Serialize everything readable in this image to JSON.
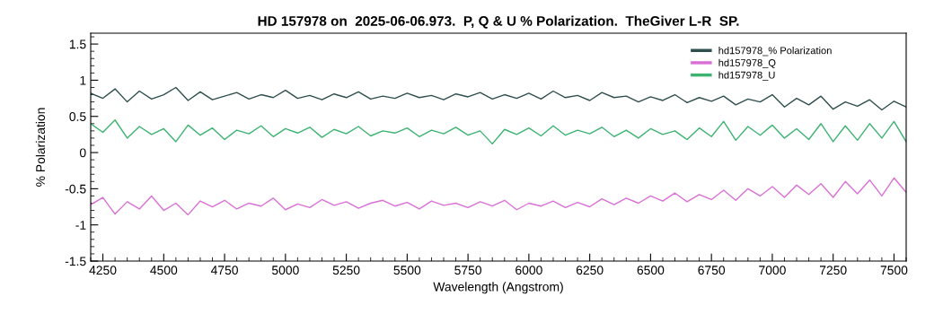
{
  "chart_data": {
    "type": "line",
    "title": "HD 157978 on  2025-06-06.973.  P, Q & U % Polarization.  TheGiver L-R  SP.",
    "xlabel": "Wavelength (Angstrom)",
    "ylabel": "% Polarization",
    "x": [
      4200,
      4250,
      4300,
      4350,
      4400,
      4450,
      4500,
      4550,
      4600,
      4650,
      4700,
      4750,
      4800,
      4850,
      4900,
      4950,
      5000,
      5050,
      5100,
      5150,
      5200,
      5250,
      5300,
      5350,
      5400,
      5450,
      5500,
      5550,
      5600,
      5650,
      5700,
      5750,
      5800,
      5850,
      5900,
      5950,
      6000,
      6050,
      6100,
      6150,
      6200,
      6250,
      6300,
      6350,
      6400,
      6450,
      6500,
      6550,
      6600,
      6650,
      6700,
      6750,
      6800,
      6850,
      6900,
      6950,
      7000,
      7050,
      7100,
      7150,
      7200,
      7250,
      7300,
      7350,
      7400,
      7450,
      7500,
      7550
    ],
    "series": [
      {
        "name": "hd157978_% Polarization",
        "color": "#2f4f4f",
        "values": [
          0.82,
          0.75,
          0.88,
          0.7,
          0.85,
          0.74,
          0.8,
          0.9,
          0.72,
          0.84,
          0.73,
          0.78,
          0.83,
          0.74,
          0.8,
          0.76,
          0.86,
          0.75,
          0.79,
          0.73,
          0.81,
          0.76,
          0.84,
          0.74,
          0.78,
          0.75,
          0.82,
          0.76,
          0.79,
          0.73,
          0.81,
          0.77,
          0.83,
          0.74,
          0.8,
          0.75,
          0.82,
          0.74,
          0.85,
          0.76,
          0.79,
          0.72,
          0.83,
          0.76,
          0.78,
          0.7,
          0.77,
          0.72,
          0.8,
          0.69,
          0.76,
          0.71,
          0.78,
          0.66,
          0.74,
          0.7,
          0.8,
          0.63,
          0.75,
          0.66,
          0.78,
          0.6,
          0.7,
          0.64,
          0.73,
          0.59,
          0.71,
          0.63
        ]
      },
      {
        "name": "hd157978_Q",
        "color": "#da70d6",
        "values": [
          -0.72,
          -0.62,
          -0.85,
          -0.68,
          -0.78,
          -0.6,
          -0.8,
          -0.7,
          -0.86,
          -0.67,
          -0.75,
          -0.66,
          -0.78,
          -0.7,
          -0.74,
          -0.63,
          -0.79,
          -0.71,
          -0.76,
          -0.65,
          -0.73,
          -0.68,
          -0.77,
          -0.7,
          -0.66,
          -0.74,
          -0.69,
          -0.78,
          -0.67,
          -0.73,
          -0.7,
          -0.76,
          -0.68,
          -0.74,
          -0.66,
          -0.79,
          -0.7,
          -0.74,
          -0.67,
          -0.76,
          -0.69,
          -0.75,
          -0.64,
          -0.72,
          -0.63,
          -0.7,
          -0.6,
          -0.67,
          -0.56,
          -0.68,
          -0.58,
          -0.65,
          -0.52,
          -0.66,
          -0.5,
          -0.6,
          -0.47,
          -0.62,
          -0.45,
          -0.58,
          -0.43,
          -0.62,
          -0.4,
          -0.57,
          -0.38,
          -0.6,
          -0.35,
          -0.55
        ]
      },
      {
        "name": "hd157978_U",
        "color": "#3cb371",
        "values": [
          0.4,
          0.28,
          0.45,
          0.2,
          0.36,
          0.25,
          0.33,
          0.15,
          0.38,
          0.24,
          0.34,
          0.18,
          0.31,
          0.26,
          0.37,
          0.22,
          0.33,
          0.27,
          0.35,
          0.21,
          0.32,
          0.26,
          0.36,
          0.23,
          0.3,
          0.27,
          0.34,
          0.22,
          0.31,
          0.26,
          0.35,
          0.24,
          0.3,
          0.12,
          0.32,
          0.25,
          0.34,
          0.23,
          0.37,
          0.24,
          0.31,
          0.26,
          0.35,
          0.22,
          0.31,
          0.2,
          0.33,
          0.25,
          0.3,
          0.18,
          0.34,
          0.22,
          0.43,
          0.17,
          0.36,
          0.24,
          0.38,
          0.2,
          0.33,
          0.18,
          0.4,
          0.15,
          0.37,
          0.17,
          0.4,
          0.2,
          0.43,
          0.15
        ]
      }
    ],
    "xlim": [
      4200,
      7550
    ],
    "xticks": [
      4250,
      4500,
      4750,
      5000,
      5250,
      5500,
      5750,
      6000,
      6250,
      6500,
      6750,
      7000,
      7250,
      7500
    ],
    "ylim": [
      -1.5,
      1.65
    ],
    "yticks": [
      -1.5,
      -1,
      -0.5,
      0,
      0.5,
      1,
      1.5
    ],
    "grid": false,
    "legend": "top right",
    "marker": "none",
    "line_style": "solid"
  }
}
